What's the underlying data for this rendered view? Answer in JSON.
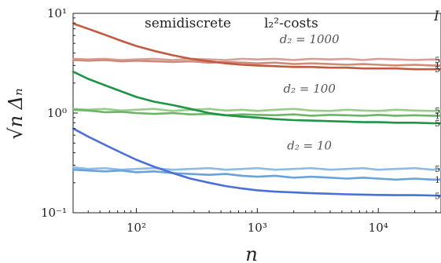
{
  "chart_data": {
    "type": "line",
    "title_left": "semidiscrete",
    "title_right": "l₂²-costs",
    "legend_fragment": "I",
    "xlabel": "n",
    "ylabel": "√n Δₙ",
    "xscale": "log",
    "yscale": "log",
    "xlim": [
      30,
      33000
    ],
    "ylim": [
      0.1,
      10
    ],
    "grid": false,
    "x_ticks": [
      {
        "value": 100,
        "label": "10²"
      },
      {
        "value": 1000,
        "label": "10³"
      },
      {
        "value": 10000,
        "label": "10⁴"
      }
    ],
    "y_ticks": [
      {
        "value": 0.1,
        "label": "10⁻¹"
      },
      {
        "value": 1,
        "label": "10⁰"
      },
      {
        "value": 10,
        "label": "10¹"
      }
    ],
    "annotations": [
      {
        "text": "d₂ = 1000",
        "x": 2700,
        "y": 5.0
      },
      {
        "text": "d₂ = 100",
        "x": 2700,
        "y": 1.6
      },
      {
        "text": "d₂ = 10",
        "x": 2700,
        "y": 0.43
      }
    ],
    "x": [
      30,
      40,
      55,
      75,
      100,
      140,
      200,
      280,
      400,
      550,
      750,
      1000,
      1400,
      2000,
      2800,
      4000,
      5500,
      7500,
      10000,
      14000,
      20000,
      28000,
      33000
    ],
    "series": [
      {
        "group": "d₂ = 1000",
        "end_label": "5",
        "color": "#d8a094",
        "values": [
          3.5,
          3.45,
          3.5,
          3.4,
          3.45,
          3.5,
          3.4,
          3.5,
          3.45,
          3.4,
          3.5,
          3.45,
          3.5,
          3.4,
          3.5,
          3.45,
          3.5,
          3.4,
          3.5,
          3.45,
          3.4,
          3.45,
          3.4
        ]
      },
      {
        "group": "d₂ = 1000",
        "end_label": "1",
        "color": "#cf8a78",
        "values": [
          3.4,
          3.35,
          3.4,
          3.3,
          3.35,
          3.3,
          3.25,
          3.3,
          3.2,
          3.25,
          3.2,
          3.15,
          3.2,
          3.1,
          3.15,
          3.1,
          3.05,
          3.1,
          3.05,
          3.0,
          3.05,
          3.0,
          3.0
        ]
      },
      {
        "group": "d₂ = 1000",
        "end_label": "5",
        "color": "#c05a40",
        "values": [
          7.9,
          7.0,
          6.1,
          5.3,
          4.7,
          4.2,
          3.8,
          3.5,
          3.3,
          3.15,
          3.05,
          3.0,
          2.95,
          2.9,
          2.9,
          2.85,
          2.85,
          2.8,
          2.8,
          2.8,
          2.75,
          2.75,
          2.75
        ]
      },
      {
        "group": "d₂ = 100",
        "end_label": "5",
        "color": "#98cc8c",
        "values": [
          1.1,
          1.08,
          1.1,
          1.06,
          1.08,
          1.1,
          1.05,
          1.08,
          1.1,
          1.06,
          1.08,
          1.05,
          1.08,
          1.1,
          1.06,
          1.05,
          1.08,
          1.06,
          1.05,
          1.08,
          1.06,
          1.05,
          1.06
        ]
      },
      {
        "group": "d₂ = 100",
        "end_label": "1",
        "color": "#6cb466",
        "values": [
          1.08,
          1.06,
          1.02,
          1.03,
          1.0,
          0.98,
          1.0,
          0.97,
          0.98,
          0.95,
          0.97,
          0.96,
          0.95,
          0.97,
          0.94,
          0.96,
          0.95,
          0.94,
          0.96,
          0.94,
          0.95,
          0.94,
          0.94
        ]
      },
      {
        "group": "d₂ = 100",
        "end_label": "5",
        "color": "#1f9445",
        "values": [
          2.6,
          2.2,
          1.9,
          1.65,
          1.45,
          1.3,
          1.2,
          1.1,
          1.0,
          0.95,
          0.92,
          0.9,
          0.87,
          0.85,
          0.84,
          0.83,
          0.82,
          0.81,
          0.81,
          0.8,
          0.8,
          0.79,
          0.79
        ]
      },
      {
        "group": "d₂ = 10",
        "end_label": "5",
        "color": "#8cbce6",
        "values": [
          0.285,
          0.275,
          0.28,
          0.27,
          0.275,
          0.28,
          0.27,
          0.275,
          0.28,
          0.27,
          0.275,
          0.28,
          0.27,
          0.275,
          0.28,
          0.27,
          0.275,
          0.28,
          0.27,
          0.275,
          0.28,
          0.27,
          0.275
        ]
      },
      {
        "group": "d₂ = 10",
        "end_label": "1",
        "color": "#6aa2dc",
        "values": [
          0.27,
          0.265,
          0.26,
          0.265,
          0.255,
          0.26,
          0.25,
          0.245,
          0.24,
          0.245,
          0.235,
          0.23,
          0.235,
          0.225,
          0.23,
          0.225,
          0.22,
          0.225,
          0.22,
          0.215,
          0.22,
          0.215,
          0.215
        ]
      },
      {
        "group": "d₂ = 10",
        "end_label": "5",
        "color": "#4a6fd8",
        "values": [
          0.7,
          0.58,
          0.48,
          0.4,
          0.34,
          0.29,
          0.25,
          0.22,
          0.2,
          0.185,
          0.175,
          0.168,
          0.163,
          0.16,
          0.157,
          0.155,
          0.153,
          0.152,
          0.151,
          0.15,
          0.15,
          0.149,
          0.148
        ]
      }
    ]
  }
}
